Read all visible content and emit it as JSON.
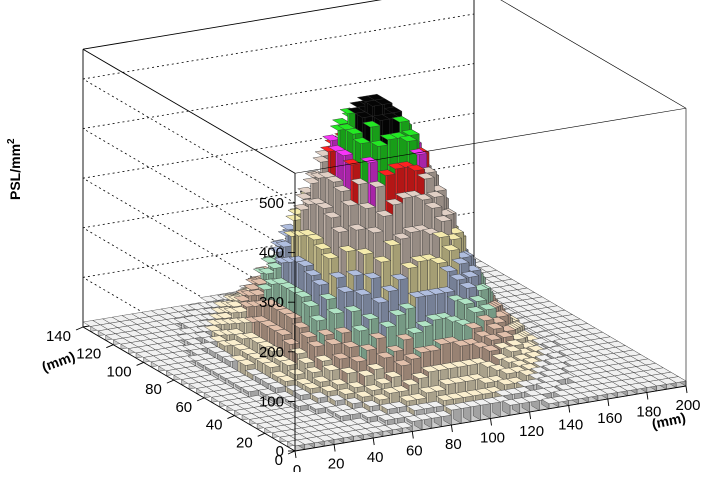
{
  "chart_data": {
    "type": "lego3d",
    "zlabel": "PSL/mm²",
    "zlabel_main": "PSL/mm",
    "zlabel_sup": "2",
    "xlabel": "(mm)",
    "ylabel": "(mm)",
    "xlim": [
      0,
      200
    ],
    "ylim": [
      0,
      140
    ],
    "zlim": [
      0,
      560
    ],
    "x_ticks": [
      "0",
      "20",
      "40",
      "60",
      "80",
      "100",
      "120",
      "140",
      "160",
      "180",
      "200"
    ],
    "y_ticks": [
      "0",
      "20",
      "40",
      "60",
      "80",
      "100",
      "120",
      "140"
    ],
    "z_ticks": [
      "0",
      "100",
      "200",
      "300",
      "400",
      "500"
    ],
    "distribution": {
      "shape": "approximately gaussian peak",
      "peak_center_x_mm": 95,
      "peak_center_y_mm": 70,
      "peak_psl_per_mm2": 520,
      "baseline_psl_per_mm2": 5
    },
    "color_levels": [
      {
        "min": 0,
        "color": "#e8e8e8"
      },
      {
        "min": 40,
        "color": "#f1e6c6"
      },
      {
        "min": 90,
        "color": "#d9b9a4"
      },
      {
        "min": 140,
        "color": "#a9dbbd"
      },
      {
        "min": 190,
        "color": "#a9b7d6"
      },
      {
        "min": 250,
        "color": "#ece2a6"
      },
      {
        "min": 300,
        "color": "#d8c8bd"
      },
      {
        "min": 400,
        "color": "#ff2020"
      },
      {
        "min": 430,
        "color": "#ee33ee"
      },
      {
        "min": 460,
        "color": "#22e022"
      },
      {
        "min": 500,
        "color": "#050505"
      }
    ]
  }
}
